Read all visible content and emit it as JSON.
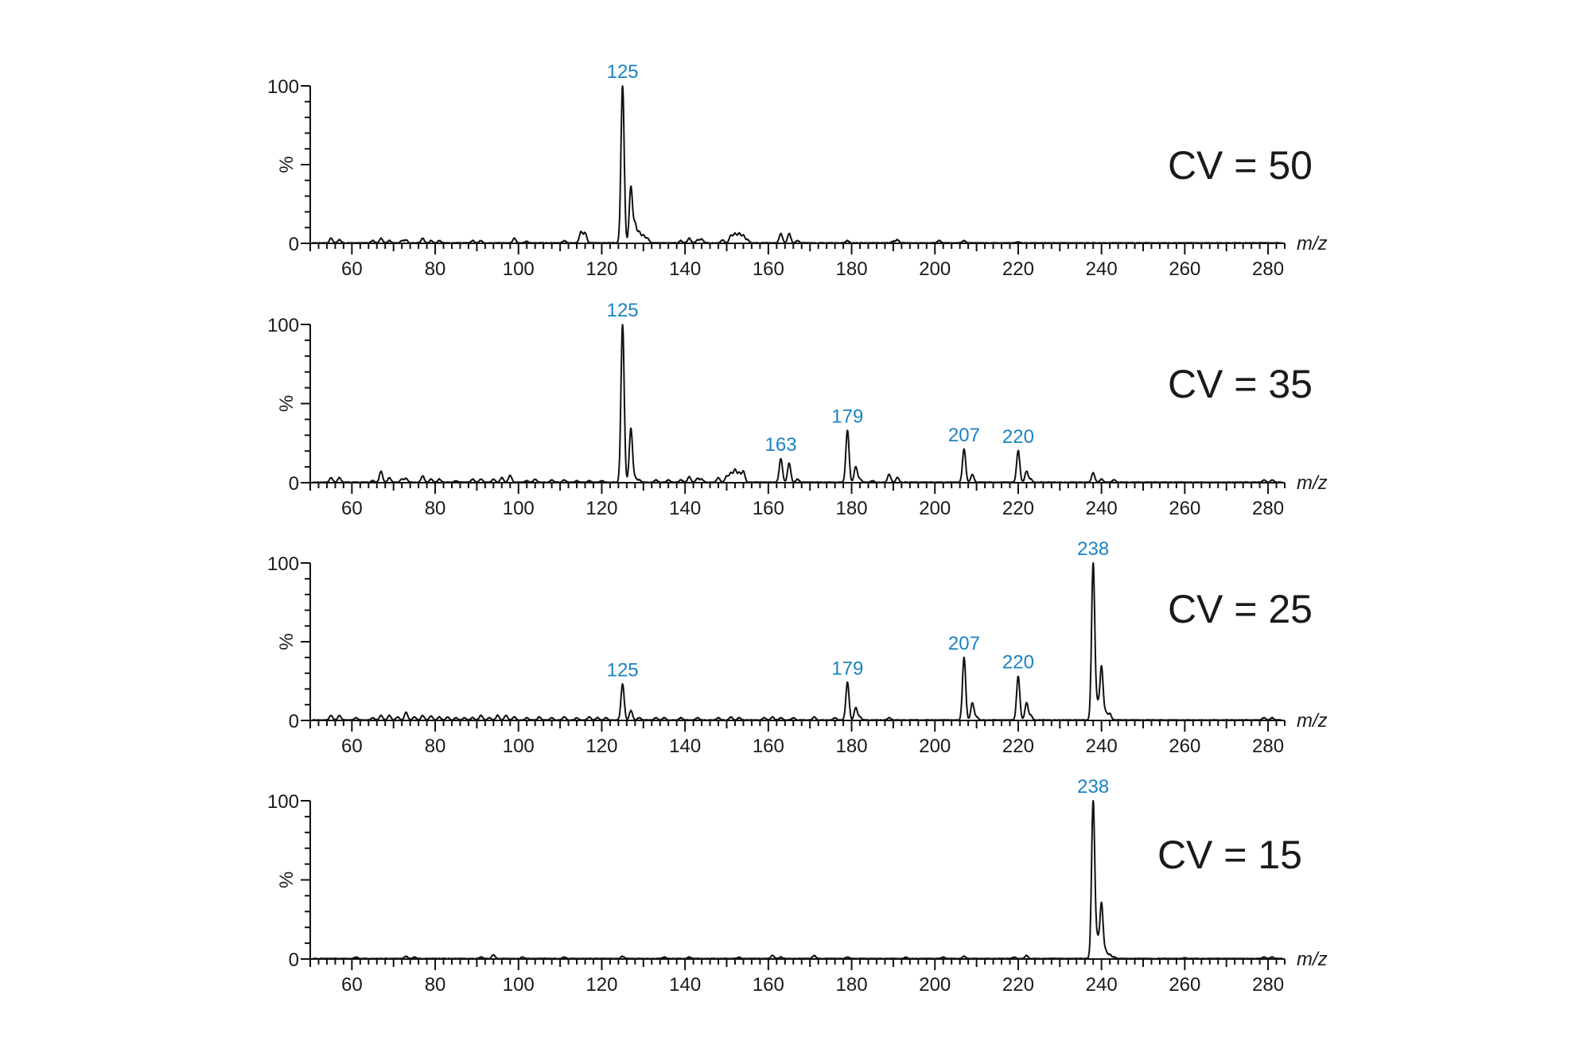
{
  "chart_data": [
    {
      "type": "line",
      "title": "CV = 50",
      "xlabel": "m/z",
      "ylabel": "%",
      "xlim": [
        50,
        284
      ],
      "ylim": [
        0,
        100
      ],
      "x_ticks": [
        60,
        80,
        100,
        120,
        140,
        160,
        180,
        200,
        220,
        240,
        260,
        280
      ],
      "y_ticks": [
        0,
        100
      ],
      "grid": false,
      "annotations": [
        {
          "mz": 125,
          "label": "125"
        }
      ],
      "peaks": [
        [
          55,
          3
        ],
        [
          57,
          2
        ],
        [
          65,
          1.5
        ],
        [
          67,
          3
        ],
        [
          69,
          1.5
        ],
        [
          72,
          1.5
        ],
        [
          73,
          2
        ],
        [
          77,
          3
        ],
        [
          79,
          1.5
        ],
        [
          81,
          1.5
        ],
        [
          89,
          1.5
        ],
        [
          91,
          1.5
        ],
        [
          99,
          3
        ],
        [
          102,
          1
        ],
        [
          111,
          1.5
        ],
        [
          115,
          7
        ],
        [
          116,
          6.5
        ],
        [
          125,
          100
        ],
        [
          127,
          36
        ],
        [
          128,
          12
        ],
        [
          129,
          7
        ],
        [
          130,
          5
        ],
        [
          131,
          3
        ],
        [
          139,
          1.5
        ],
        [
          141,
          3
        ],
        [
          143,
          2
        ],
        [
          144,
          2.5
        ],
        [
          149,
          2
        ],
        [
          151,
          5
        ],
        [
          152,
          6
        ],
        [
          153,
          6
        ],
        [
          154,
          5
        ],
        [
          155,
          2
        ],
        [
          163,
          6
        ],
        [
          165,
          6
        ],
        [
          167,
          1.5
        ],
        [
          179,
          1.5
        ],
        [
          190,
          1
        ],
        [
          191,
          2
        ],
        [
          201,
          1.5
        ],
        [
          207,
          1.5
        ],
        [
          220,
          0.6
        ]
      ]
    },
    {
      "type": "line",
      "title": "CV = 35",
      "xlabel": "m/z",
      "ylabel": "%",
      "xlim": [
        50,
        284
      ],
      "ylim": [
        0,
        100
      ],
      "x_ticks": [
        60,
        80,
        100,
        120,
        140,
        160,
        180,
        200,
        220,
        240,
        260,
        280
      ],
      "y_ticks": [
        0,
        100
      ],
      "grid": false,
      "annotations": [
        {
          "mz": 125,
          "label": "125"
        },
        {
          "mz": 163,
          "label": "163"
        },
        {
          "mz": 179,
          "label": "179"
        },
        {
          "mz": 207,
          "label": "207"
        },
        {
          "mz": 220,
          "label": "220"
        }
      ],
      "peaks": [
        [
          55,
          3
        ],
        [
          57,
          3
        ],
        [
          65,
          1
        ],
        [
          67,
          7
        ],
        [
          69,
          3
        ],
        [
          72,
          2
        ],
        [
          73,
          2.5
        ],
        [
          77,
          4
        ],
        [
          79,
          2
        ],
        [
          81,
          2
        ],
        [
          85,
          1
        ],
        [
          89,
          2
        ],
        [
          91,
          2
        ],
        [
          94,
          2
        ],
        [
          96,
          3
        ],
        [
          98,
          4.5
        ],
        [
          102,
          1
        ],
        [
          104,
          2
        ],
        [
          108,
          1.5
        ],
        [
          111,
          1.5
        ],
        [
          114,
          1
        ],
        [
          117,
          1
        ],
        [
          120,
          1
        ],
        [
          125,
          100
        ],
        [
          127,
          34
        ],
        [
          128,
          3
        ],
        [
          129,
          1.5
        ],
        [
          133,
          1.5
        ],
        [
          136,
          1.5
        ],
        [
          139,
          1.5
        ],
        [
          141,
          3.5
        ],
        [
          143,
          2.5
        ],
        [
          144,
          2
        ],
        [
          148,
          3
        ],
        [
          150,
          4
        ],
        [
          151,
          6
        ],
        [
          152,
          8
        ],
        [
          153,
          6
        ],
        [
          154,
          7
        ],
        [
          163,
          15
        ],
        [
          165,
          12
        ],
        [
          167,
          2
        ],
        [
          179,
          33
        ],
        [
          181,
          10
        ],
        [
          182,
          2
        ],
        [
          185,
          1
        ],
        [
          189,
          5
        ],
        [
          191,
          3
        ],
        [
          207,
          21
        ],
        [
          209,
          5
        ],
        [
          220,
          20
        ],
        [
          222,
          7
        ],
        [
          223,
          2
        ],
        [
          238,
          6
        ],
        [
          240,
          2
        ],
        [
          243,
          1.5
        ],
        [
          279,
          1.5
        ],
        [
          281,
          1.5
        ]
      ]
    },
    {
      "type": "line",
      "title": "CV = 25",
      "xlabel": "m/z",
      "ylabel": "%",
      "xlim": [
        50,
        284
      ],
      "ylim": [
        0,
        100
      ],
      "x_ticks": [
        60,
        80,
        100,
        120,
        140,
        160,
        180,
        200,
        220,
        240,
        260,
        280
      ],
      "y_ticks": [
        0,
        100
      ],
      "grid": false,
      "annotations": [
        {
          "mz": 125,
          "label": "125"
        },
        {
          "mz": 179,
          "label": "179"
        },
        {
          "mz": 207,
          "label": "207"
        },
        {
          "mz": 220,
          "label": "220"
        },
        {
          "mz": 238,
          "label": "238"
        }
      ],
      "peaks": [
        [
          55,
          3
        ],
        [
          57,
          3
        ],
        [
          61,
          1.5
        ],
        [
          65,
          1.5
        ],
        [
          67,
          3
        ],
        [
          69,
          3
        ],
        [
          71,
          2
        ],
        [
          73,
          5
        ],
        [
          75,
          2
        ],
        [
          77,
          3
        ],
        [
          79,
          2.5
        ],
        [
          81,
          2
        ],
        [
          83,
          2
        ],
        [
          85,
          1.5
        ],
        [
          87,
          1.5
        ],
        [
          89,
          1.5
        ],
        [
          91,
          3
        ],
        [
          93,
          1.5
        ],
        [
          95,
          3
        ],
        [
          97,
          3
        ],
        [
          99,
          2
        ],
        [
          102,
          1.5
        ],
        [
          105,
          2
        ],
        [
          108,
          1.5
        ],
        [
          111,
          2
        ],
        [
          114,
          1.5
        ],
        [
          117,
          2
        ],
        [
          119,
          1.5
        ],
        [
          121,
          1.5
        ],
        [
          125,
          23
        ],
        [
          127,
          6
        ],
        [
          129,
          1.5
        ],
        [
          133,
          1.5
        ],
        [
          135,
          1.5
        ],
        [
          139,
          1.5
        ],
        [
          143,
          1.5
        ],
        [
          148,
          1.5
        ],
        [
          151,
          2
        ],
        [
          153,
          1.5
        ],
        [
          159,
          1.5
        ],
        [
          161,
          2
        ],
        [
          163,
          1.5
        ],
        [
          166,
          1.5
        ],
        [
          171,
          2
        ],
        [
          176,
          1.5
        ],
        [
          179,
          24
        ],
        [
          181,
          8
        ],
        [
          182,
          2
        ],
        [
          189,
          1.5
        ],
        [
          207,
          40
        ],
        [
          209,
          11
        ],
        [
          210,
          2
        ],
        [
          220,
          28
        ],
        [
          222,
          11
        ],
        [
          223,
          3
        ],
        [
          238,
          100
        ],
        [
          239,
          10
        ],
        [
          240,
          34
        ],
        [
          241,
          5
        ],
        [
          242,
          4
        ],
        [
          279,
          1.5
        ],
        [
          281,
          1.5
        ]
      ]
    },
    {
      "type": "line",
      "title": "CV = 15",
      "xlabel": "m/z",
      "ylabel": "%",
      "xlim": [
        50,
        284
      ],
      "ylim": [
        0,
        100
      ],
      "x_ticks": [
        60,
        80,
        100,
        120,
        140,
        160,
        180,
        200,
        220,
        240,
        260,
        280
      ],
      "y_ticks": [
        0,
        100
      ],
      "grid": false,
      "annotations": [
        {
          "mz": 238,
          "label": "238"
        }
      ],
      "peaks": [
        [
          61,
          1
        ],
        [
          73,
          1.5
        ],
        [
          75,
          1
        ],
        [
          91,
          1
        ],
        [
          94,
          2.5
        ],
        [
          101,
          1
        ],
        [
          111,
          1
        ],
        [
          125,
          1.5
        ],
        [
          135,
          1
        ],
        [
          141,
          1
        ],
        [
          153,
          1
        ],
        [
          161,
          2
        ],
        [
          163,
          1
        ],
        [
          171,
          2
        ],
        [
          179,
          1
        ],
        [
          193,
          0.8
        ],
        [
          202,
          1
        ],
        [
          207,
          1.5
        ],
        [
          219,
          1
        ],
        [
          222,
          2
        ],
        [
          238,
          100
        ],
        [
          239,
          12
        ],
        [
          240,
          35
        ],
        [
          241,
          5
        ],
        [
          242,
          2.5
        ],
        [
          243,
          1
        ],
        [
          260,
          0.5
        ],
        [
          279,
          1
        ],
        [
          281,
          1
        ]
      ]
    }
  ],
  "axes": {
    "y_top_label": "100",
    "y_mid_label": "%",
    "y_zero_label": "0",
    "x_title": "m/z",
    "x_tick_labels": [
      "60",
      "80",
      "100",
      "120",
      "140",
      "160",
      "180",
      "200",
      "220",
      "240",
      "260",
      "280"
    ]
  },
  "panels": [
    {
      "cv_label": "CV = 50"
    },
    {
      "cv_label": "CV = 35"
    },
    {
      "cv_label": "CV = 25"
    },
    {
      "cv_label": "CV = 15"
    }
  ],
  "colors": {
    "trace": "#111111",
    "peak_label": "#1a82c4",
    "text": "#1a1a1a"
  }
}
